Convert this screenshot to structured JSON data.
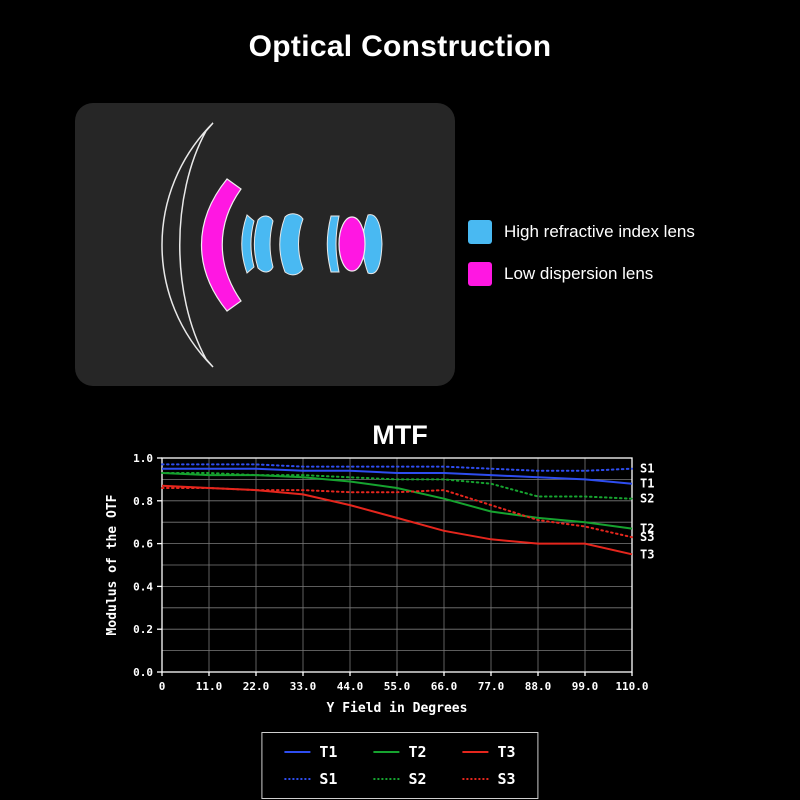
{
  "title": "Optical Construction",
  "lens_legend": [
    {
      "label": "High refractive index lens",
      "color": "#49b9f2"
    },
    {
      "label": "Low dispersion lens",
      "color": "#ff17e2"
    }
  ],
  "chart_data": {
    "type": "line",
    "title": "MTF",
    "xlabel": "Y Field in Degrees",
    "ylabel": "Modulus of the OTF",
    "xlim": [
      0,
      110
    ],
    "ylim": [
      0,
      1.0
    ],
    "grid": true,
    "x": [
      0,
      11,
      22,
      33,
      44,
      55,
      66,
      77,
      88,
      99,
      110
    ],
    "x_tick_labels": [
      "0",
      "11.0",
      "22.0",
      "33.0",
      "44.0",
      "55.0",
      "66.0",
      "77.0",
      "88.0",
      "99.0",
      "110.0"
    ],
    "y_ticks": [
      0.0,
      0.2,
      0.4,
      0.6,
      0.8,
      1.0
    ],
    "y_tick_labels": [
      "0.0",
      "0.2",
      "0.4",
      "0.6",
      "0.8",
      "1.0"
    ],
    "series": [
      {
        "name": "S1",
        "color": "#2e4df0",
        "style": "dotted",
        "values": [
          0.97,
          0.97,
          0.97,
          0.96,
          0.96,
          0.96,
          0.96,
          0.95,
          0.94,
          0.94,
          0.95
        ]
      },
      {
        "name": "T1",
        "color": "#2e4df0",
        "style": "solid",
        "values": [
          0.95,
          0.95,
          0.95,
          0.94,
          0.94,
          0.93,
          0.93,
          0.92,
          0.91,
          0.9,
          0.88
        ]
      },
      {
        "name": "S2",
        "color": "#16a32f",
        "style": "dotted",
        "values": [
          0.93,
          0.93,
          0.92,
          0.92,
          0.91,
          0.9,
          0.9,
          0.88,
          0.82,
          0.82,
          0.81
        ]
      },
      {
        "name": "T2",
        "color": "#16a32f",
        "style": "solid",
        "values": [
          0.93,
          0.92,
          0.92,
          0.91,
          0.89,
          0.86,
          0.81,
          0.75,
          0.72,
          0.7,
          0.67
        ]
      },
      {
        "name": "S3",
        "color": "#e5261d",
        "style": "dotted",
        "values": [
          0.86,
          0.86,
          0.85,
          0.85,
          0.84,
          0.84,
          0.85,
          0.78,
          0.71,
          0.68,
          0.63
        ]
      },
      {
        "name": "T3",
        "color": "#e5261d",
        "style": "solid",
        "values": [
          0.87,
          0.86,
          0.85,
          0.83,
          0.78,
          0.72,
          0.66,
          0.62,
          0.6,
          0.6,
          0.55
        ]
      }
    ],
    "legend": {
      "position": "bottom",
      "rows": [
        [
          "T1",
          "T2",
          "T3"
        ],
        [
          "S1",
          "S2",
          "S3"
        ]
      ]
    }
  }
}
